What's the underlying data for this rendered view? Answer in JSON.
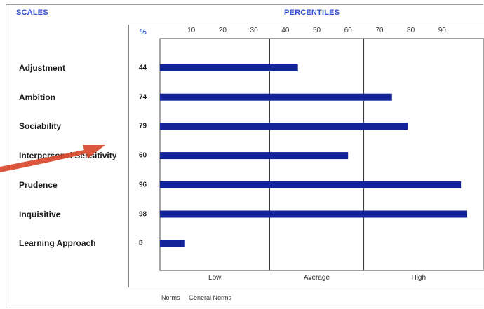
{
  "headings": {
    "scales": "SCALES",
    "percentiles": "PERCENTILES",
    "percent_symbol": "%"
  },
  "footer": {
    "norms_label": "Norms",
    "norms_value": "General Norms"
  },
  "colors": {
    "bar": "#13249a",
    "heading": "#2f4fd0",
    "annotation_arrow": "#d8482b"
  },
  "chart_data": {
    "type": "bar",
    "orientation": "horizontal",
    "title": "PERCENTILES",
    "categories": [
      "Adjustment",
      "Ambition",
      "Sociability",
      "Interpersonal Sensitivity",
      "Prudence",
      "Inquisitive",
      "Learning Approach"
    ],
    "values": [
      44,
      74,
      79,
      60,
      96,
      98,
      8
    ],
    "xlim": [
      0,
      100
    ],
    "x_ticks": [
      10,
      20,
      30,
      40,
      50,
      60,
      70,
      80,
      90
    ],
    "bands": [
      "Low",
      "Average",
      "High"
    ],
    "band_boundaries": [
      35,
      65
    ],
    "grid": false,
    "annotation": "red arrow pointing at the Interpersonal Sensitivity label"
  }
}
